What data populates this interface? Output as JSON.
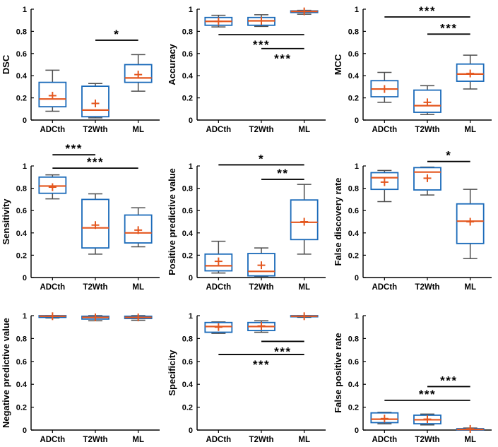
{
  "figure": {
    "description": "3x3 grid of box plots comparing ADCth, T2Wth and ML segmentation methods across nine performance metrics",
    "colors": {
      "box": "#1a6ab9",
      "median": "#e4571f",
      "mean_marker": "#e4571f",
      "whisker": "#4d4d4d",
      "axis": "#000000",
      "text": "#000000",
      "significance": "#000000",
      "background": "#ffffff"
    }
  },
  "chart_data": [
    {
      "type": "box",
      "ylabel": "DSC",
      "categories": [
        "ADCth",
        "T2Wth",
        "ML"
      ],
      "ylim": [
        0,
        1
      ],
      "yticks": [
        0,
        0.2,
        0.4,
        0.6,
        0.8,
        1
      ],
      "ytick_labels": [
        "0",
        "0.2",
        "0.4",
        "0.6",
        "0.8",
        "1"
      ],
      "boxes": [
        {
          "whislo": 0.08,
          "q1": 0.12,
          "med": 0.19,
          "q3": 0.34,
          "whishi": 0.45,
          "mean": 0.22
        },
        {
          "whislo": 0.02,
          "q1": 0.03,
          "med": 0.09,
          "q3": 0.305,
          "whishi": 0.33,
          "mean": 0.15
        },
        {
          "whislo": 0.26,
          "q1": 0.34,
          "med": 0.38,
          "q3": 0.5,
          "whishi": 0.59,
          "mean": 0.41
        }
      ],
      "significance": [
        {
          "groups": [
            1,
            2
          ],
          "y": 0.72,
          "label": "*",
          "label_side": "above"
        }
      ]
    },
    {
      "type": "box",
      "ylabel": "Accuracy",
      "categories": [
        "ADCth",
        "T2Wth",
        "ML"
      ],
      "ylim": [
        0,
        1
      ],
      "yticks": [
        0,
        0.2,
        0.4,
        0.6,
        0.8,
        1
      ],
      "ytick_labels": [
        "0",
        "0.2",
        "0.4",
        "0.6",
        "0.8",
        "1"
      ],
      "boxes": [
        {
          "whislo": 0.84,
          "q1": 0.855,
          "med": 0.89,
          "q3": 0.925,
          "whishi": 0.945,
          "mean": 0.89
        },
        {
          "whislo": 0.845,
          "q1": 0.855,
          "med": 0.895,
          "q3": 0.925,
          "whishi": 0.95,
          "mean": 0.895
        },
        {
          "whislo": 0.955,
          "q1": 0.97,
          "med": 0.98,
          "q3": 0.985,
          "whishi": 0.99,
          "mean": 0.98
        }
      ],
      "significance": [
        {
          "groups": [
            0,
            2
          ],
          "y": 0.77,
          "label": "***",
          "label_side": "below"
        },
        {
          "groups": [
            1,
            2
          ],
          "y": 0.645,
          "label": "***",
          "label_side": "below"
        }
      ]
    },
    {
      "type": "box",
      "ylabel": "MCC",
      "categories": [
        "ADCth",
        "T2Wth",
        "ML"
      ],
      "ylim": [
        0,
        1
      ],
      "yticks": [
        0,
        0.2,
        0.4,
        0.6,
        0.8,
        1
      ],
      "ytick_labels": [
        "0",
        "0.2",
        "0.4",
        "0.6",
        "0.8",
        "1"
      ],
      "boxes": [
        {
          "whislo": 0.16,
          "q1": 0.21,
          "med": 0.28,
          "q3": 0.355,
          "whishi": 0.43,
          "mean": 0.28
        },
        {
          "whislo": 0.05,
          "q1": 0.07,
          "med": 0.13,
          "q3": 0.27,
          "whishi": 0.31,
          "mean": 0.16
        },
        {
          "whislo": 0.28,
          "q1": 0.35,
          "med": 0.415,
          "q3": 0.505,
          "whishi": 0.585,
          "mean": 0.42
        }
      ],
      "significance": [
        {
          "groups": [
            0,
            2
          ],
          "y": 0.93,
          "label": "***",
          "label_side": "above"
        },
        {
          "groups": [
            1,
            2
          ],
          "y": 0.775,
          "label": "***",
          "label_side": "above"
        }
      ]
    },
    {
      "type": "box",
      "ylabel": "Sensitivity",
      "categories": [
        "ADCth",
        "T2Wth",
        "ML"
      ],
      "ylim": [
        0,
        1
      ],
      "yticks": [
        0,
        0.2,
        0.4,
        0.6,
        0.8,
        1
      ],
      "ytick_labels": [
        "0",
        "0.2",
        "0.4",
        "0.6",
        "0.8",
        "1"
      ],
      "boxes": [
        {
          "whislo": 0.705,
          "q1": 0.755,
          "med": 0.82,
          "q3": 0.9,
          "whishi": 0.92,
          "mean": 0.81
        },
        {
          "whislo": 0.21,
          "q1": 0.265,
          "med": 0.445,
          "q3": 0.7,
          "whishi": 0.75,
          "mean": 0.47
        },
        {
          "whislo": 0.275,
          "q1": 0.31,
          "med": 0.4,
          "q3": 0.56,
          "whishi": 0.625,
          "mean": 0.425
        }
      ],
      "significance": [
        {
          "groups": [
            0,
            1
          ],
          "y": 1.1,
          "label": "***",
          "label_side": "above"
        },
        {
          "groups": [
            0,
            2
          ],
          "y": 0.98,
          "label": "***",
          "label_side": "above"
        }
      ]
    },
    {
      "type": "box",
      "ylabel": "Positive predictive value",
      "categories": [
        "ADCth",
        "T2Wth",
        "ML"
      ],
      "ylim": [
        0,
        1
      ],
      "yticks": [
        0,
        0.2,
        0.4,
        0.6,
        0.8,
        1
      ],
      "ytick_labels": [
        "0",
        "0.2",
        "0.4",
        "0.6",
        "0.8",
        "1"
      ],
      "boxes": [
        {
          "whislo": 0.04,
          "q1": 0.06,
          "med": 0.105,
          "q3": 0.21,
          "whishi": 0.325,
          "mean": 0.145
        },
        {
          "whislo": 0.005,
          "q1": 0.015,
          "med": 0.055,
          "q3": 0.215,
          "whishi": 0.265,
          "mean": 0.11
        },
        {
          "whislo": 0.21,
          "q1": 0.34,
          "med": 0.495,
          "q3": 0.695,
          "whishi": 0.835,
          "mean": 0.5
        }
      ],
      "significance": [
        {
          "groups": [
            0,
            2
          ],
          "y": 1.01,
          "label": "*",
          "label_side": "above"
        },
        {
          "groups": [
            1,
            2
          ],
          "y": 0.88,
          "label": "**",
          "label_side": "above"
        }
      ]
    },
    {
      "type": "box",
      "ylabel": "False discovery rate",
      "categories": [
        "ADCth",
        "T2Wth",
        "ML"
      ],
      "ylim": [
        0,
        1
      ],
      "yticks": [
        0,
        0.2,
        0.4,
        0.6,
        0.8,
        1
      ],
      "ytick_labels": [
        "0",
        "0.2",
        "0.4",
        "0.6",
        "0.8",
        "1"
      ],
      "boxes": [
        {
          "whislo": 0.68,
          "q1": 0.79,
          "med": 0.895,
          "q3": 0.94,
          "whishi": 0.96,
          "mean": 0.855
        },
        {
          "whislo": 0.74,
          "q1": 0.785,
          "med": 0.945,
          "q3": 0.985,
          "whishi": 0.99,
          "mean": 0.89
        },
        {
          "whislo": 0.17,
          "q1": 0.305,
          "med": 0.505,
          "q3": 0.66,
          "whishi": 0.79,
          "mean": 0.5
        }
      ],
      "significance": [
        {
          "groups": [
            1,
            2
          ],
          "y": 1.04,
          "label": "*",
          "label_side": "above"
        }
      ]
    },
    {
      "type": "box",
      "ylabel": "Negative predictive value",
      "categories": [
        "ADCth",
        "T2Wth",
        "ML"
      ],
      "ylim": [
        0,
        1
      ],
      "yticks": [
        0,
        0.2,
        0.4,
        0.6,
        0.8,
        1
      ],
      "ytick_labels": [
        "0",
        "0.2",
        "0.4",
        "0.6",
        "0.8",
        "1"
      ],
      "boxes": [
        {
          "whislo": 0.98,
          "q1": 0.985,
          "med": 0.995,
          "q3": 1.0,
          "whishi": 1.0,
          "mean": 0.995
        },
        {
          "whislo": 0.955,
          "q1": 0.97,
          "med": 0.985,
          "q3": 0.995,
          "whishi": 1.0,
          "mean": 0.985
        },
        {
          "whislo": 0.96,
          "q1": 0.975,
          "med": 0.985,
          "q3": 0.995,
          "whishi": 1.0,
          "mean": 0.985
        }
      ],
      "significance": []
    },
    {
      "type": "box",
      "ylabel": "Specificity",
      "categories": [
        "ADCth",
        "T2Wth",
        "ML"
      ],
      "ylim": [
        0,
        1
      ],
      "yticks": [
        0,
        0.2,
        0.4,
        0.6,
        0.8,
        1
      ],
      "ytick_labels": [
        "0",
        "0.2",
        "0.4",
        "0.6",
        "0.8",
        "1"
      ],
      "boxes": [
        {
          "whislo": 0.845,
          "q1": 0.855,
          "med": 0.905,
          "q3": 0.94,
          "whishi": 0.945,
          "mean": 0.9
        },
        {
          "whislo": 0.855,
          "q1": 0.87,
          "med": 0.905,
          "q3": 0.94,
          "whishi": 0.955,
          "mean": 0.91
        },
        {
          "whislo": 0.985,
          "q1": 0.99,
          "med": 0.995,
          "q3": 1.0,
          "whishi": 1.0,
          "mean": 0.995
        }
      ],
      "significance": [
        {
          "groups": [
            1,
            2
          ],
          "y": 0.775,
          "label": "***",
          "label_side": "below"
        },
        {
          "groups": [
            0,
            2
          ],
          "y": 0.66,
          "label": "***",
          "label_side": "below"
        }
      ]
    },
    {
      "type": "box",
      "ylabel": "False positive rate",
      "categories": [
        "ADCth",
        "T2Wth",
        "ML"
      ],
      "ylim": [
        0,
        1
      ],
      "yticks": [
        0,
        0.2,
        0.4,
        0.6,
        0.8,
        1
      ],
      "ytick_labels": [
        "0",
        "0.2",
        "0.4",
        "0.6",
        "0.8",
        "1"
      ],
      "boxes": [
        {
          "whislo": 0.055,
          "q1": 0.065,
          "med": 0.095,
          "q3": 0.15,
          "whishi": 0.155,
          "mean": 0.1
        },
        {
          "whislo": 0.045,
          "q1": 0.055,
          "med": 0.09,
          "q3": 0.13,
          "whishi": 0.14,
          "mean": 0.095
        },
        {
          "whislo": 0.0,
          "q1": 0.0,
          "med": 0.005,
          "q3": 0.012,
          "whishi": 0.018,
          "mean": 0.01
        }
      ],
      "significance": [
        {
          "groups": [
            1,
            2
          ],
          "y": 0.38,
          "label": "***",
          "label_side": "above"
        },
        {
          "groups": [
            0,
            2
          ],
          "y": 0.26,
          "label": "***",
          "label_side": "above"
        }
      ]
    }
  ]
}
